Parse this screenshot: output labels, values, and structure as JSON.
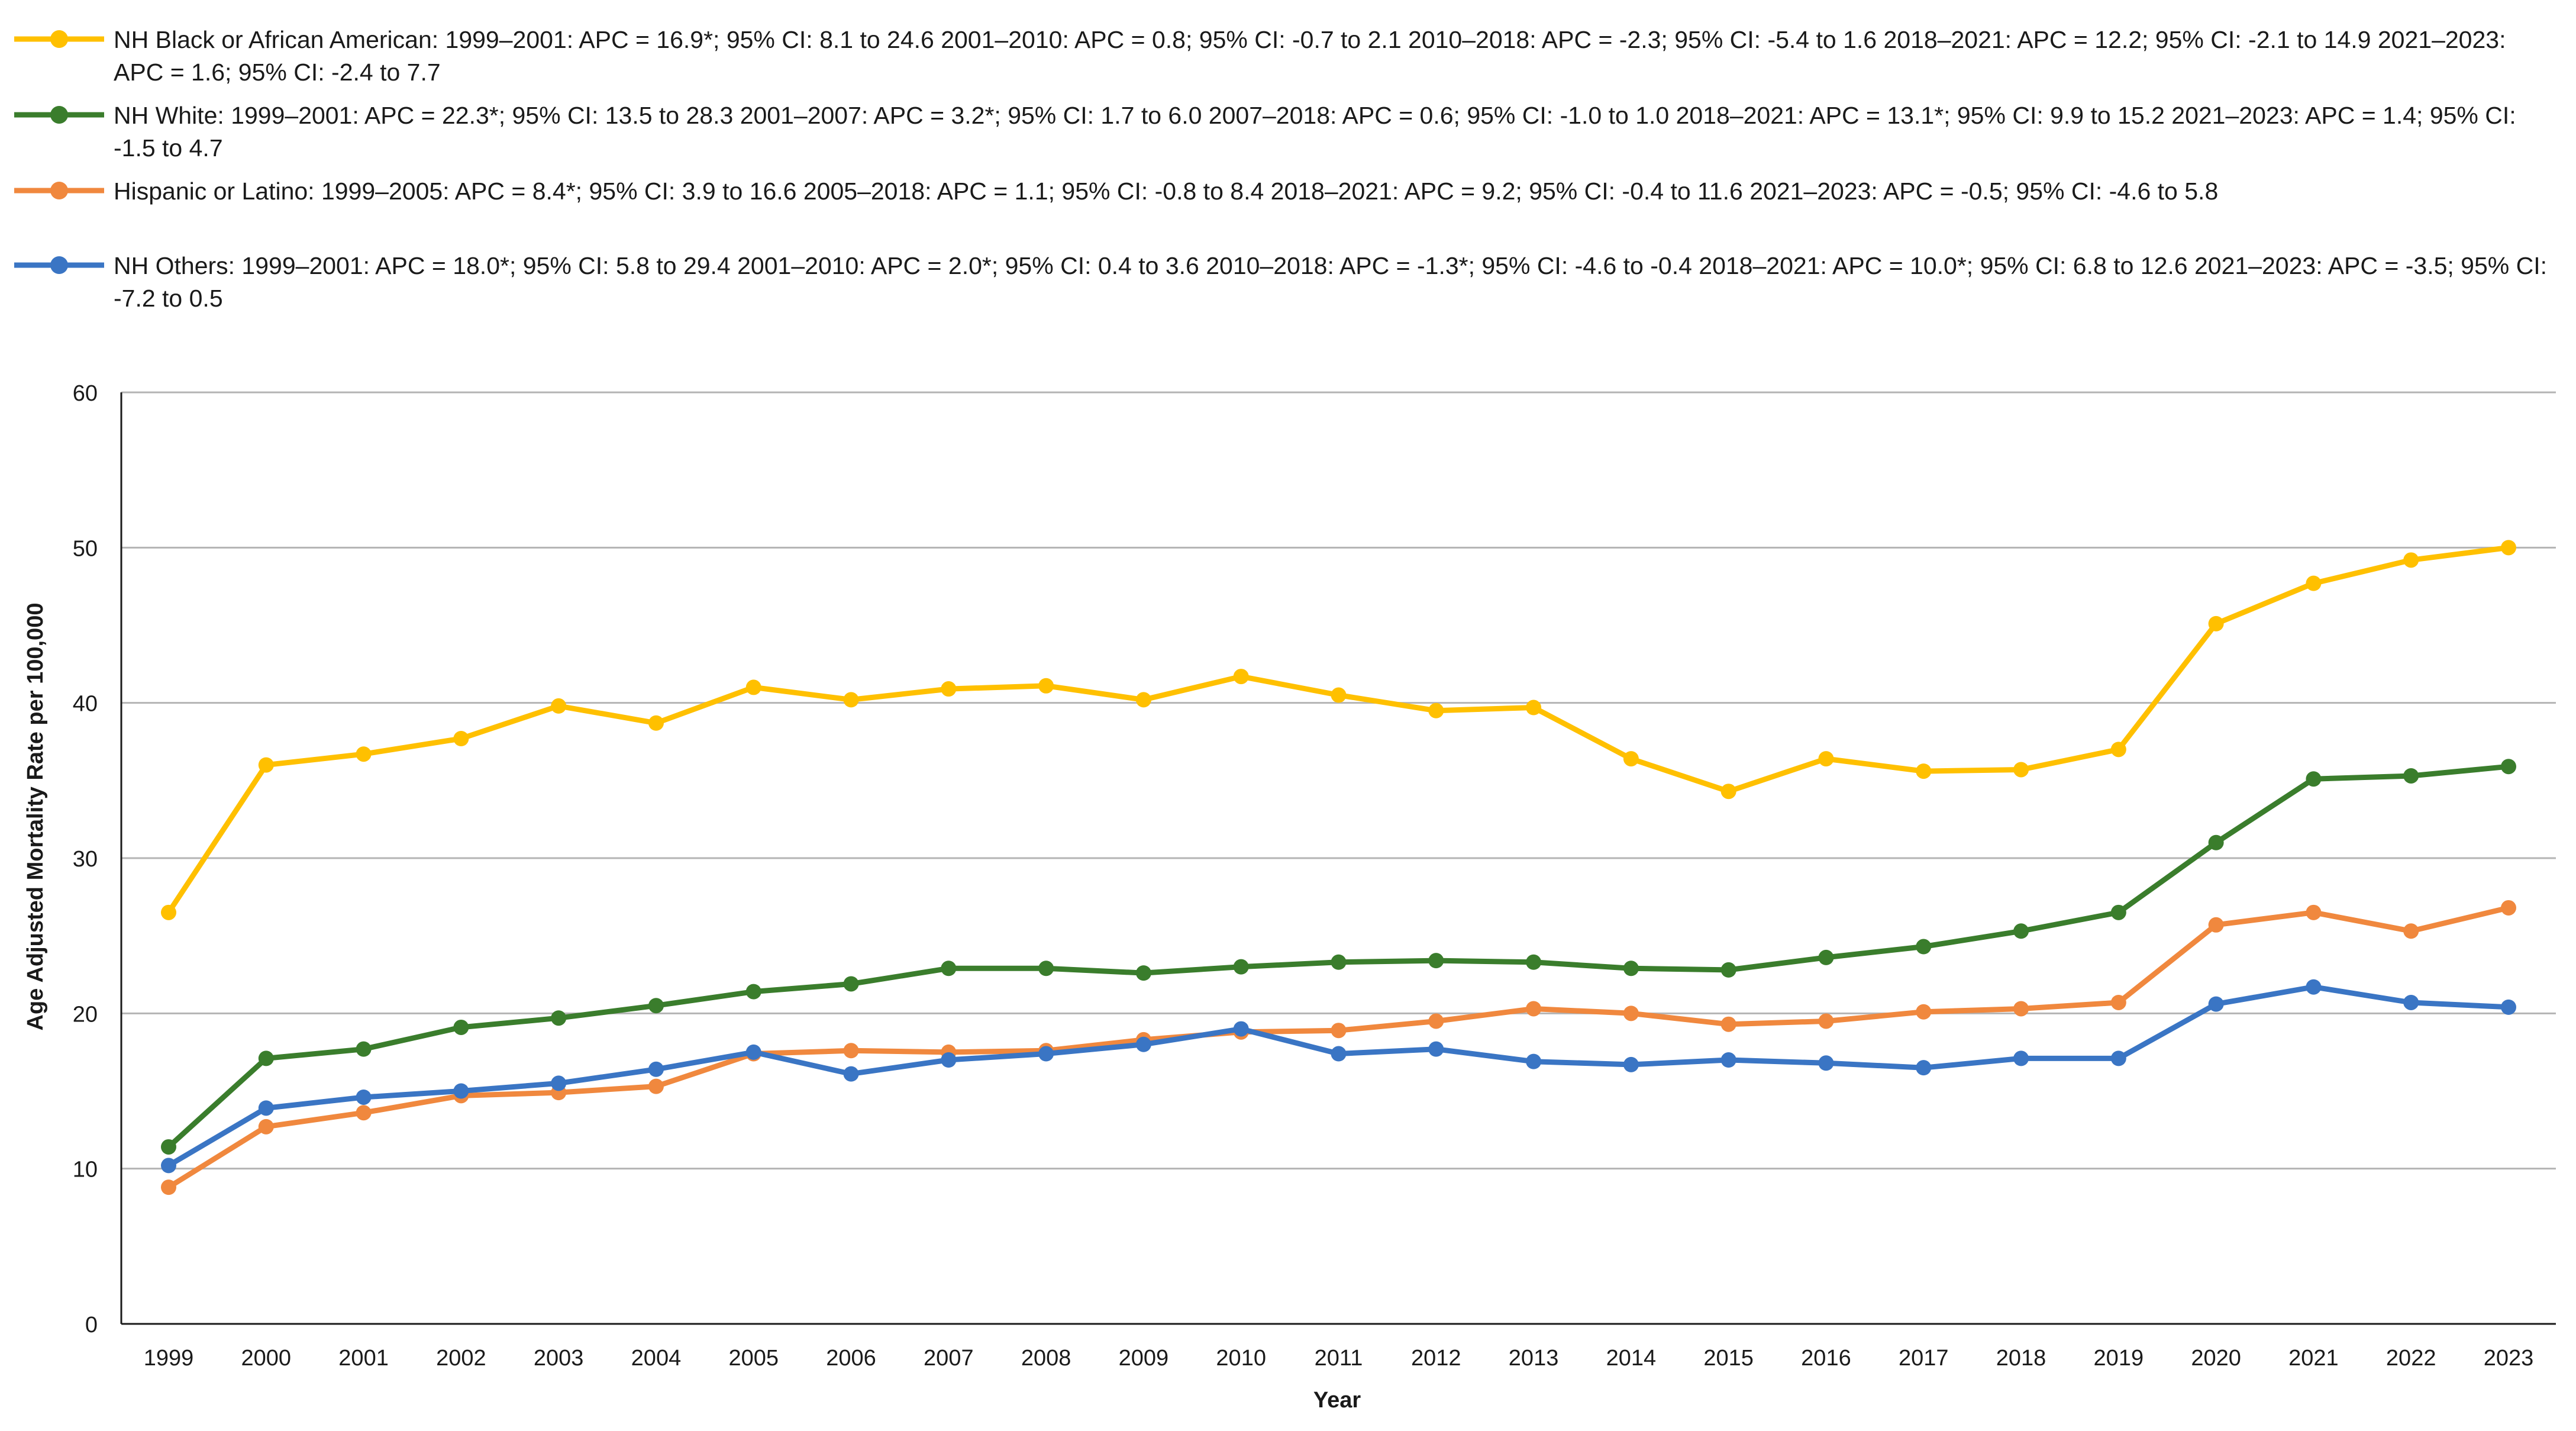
{
  "chart_data": {
    "type": "line",
    "title": "",
    "xlabel": "Year",
    "ylabel": "Age Adjusted Mortality Rate per 100,000",
    "ylim": [
      0,
      60
    ],
    "yticks": [
      0,
      10,
      20,
      30,
      40,
      50,
      60
    ],
    "grid": true,
    "legend_position": "top",
    "categories": [
      "1999",
      "2000",
      "2001",
      "2002",
      "2003",
      "2004",
      "2005",
      "2006",
      "2007",
      "2008",
      "2009",
      "2010",
      "2011",
      "2012",
      "2013",
      "2014",
      "2015",
      "2016",
      "2017",
      "2018",
      "2019",
      "2020",
      "2021",
      "2022",
      "2023"
    ],
    "series": [
      {
        "name": "NH Black or African American",
        "color": "#FFC000",
        "legend": "NH Black or African American: 1999–2001: APC = 16.9*; 95% CI: 8.1 to 24.6 2001–2010: APC = 0.8; 95% CI: -0.7 to 2.1 2010–2018: APC = -2.3; 95% CI: -5.4 to 1.6 2018–2021: APC = 12.2; 95% CI: -2.1 to 14.9 2021–2023: APC = 1.6; 95% CI: -2.4 to 7.7",
        "values": [
          26.5,
          36.0,
          36.7,
          37.7,
          39.8,
          38.7,
          41.0,
          40.2,
          40.9,
          41.1,
          40.2,
          41.7,
          40.5,
          39.5,
          39.7,
          36.4,
          34.3,
          36.4,
          35.6,
          35.7,
          37.0,
          45.1,
          47.7,
          49.2,
          50.0
        ]
      },
      {
        "name": "NH White",
        "color": "#3A7D2C",
        "legend": "NH White: 1999–2001: APC = 22.3*; 95% CI: 13.5 to 28.3 2001–2007: APC = 3.2*; 95% CI: 1.7 to 6.0 2007–2018: APC = 0.6; 95% CI: -1.0 to 1.0 2018–2021: APC = 13.1*; 95% CI: 9.9 to 15.2 2021–2023: APC = 1.4; 95% CI: -1.5 to 4.7",
        "values": [
          11.4,
          17.1,
          17.7,
          19.1,
          19.7,
          20.5,
          21.4,
          21.9,
          22.9,
          22.9,
          22.6,
          23.0,
          23.3,
          23.4,
          23.3,
          22.9,
          22.8,
          23.6,
          24.3,
          25.3,
          26.5,
          31.0,
          35.1,
          35.3,
          35.9
        ]
      },
      {
        "name": "Hispanic or Latino",
        "color": "#F0883E",
        "legend": "Hispanic or Latino: 1999–2005: APC = 8.4*; 95% CI: 3.9 to 16.6 2005–2018: APC = 1.1; 95% CI: -0.8 to 8.4 2018–2021: APC = 9.2; 95% CI: -0.4 to 11.6 2021–2023: APC = -0.5; 95% CI: -4.6 to 5.8",
        "values": [
          8.8,
          12.7,
          13.6,
          14.7,
          14.9,
          15.3,
          17.4,
          17.6,
          17.5,
          17.6,
          18.3,
          18.8,
          18.9,
          19.5,
          20.3,
          20.0,
          19.3,
          19.5,
          20.1,
          20.3,
          20.7,
          25.7,
          26.5,
          25.3,
          26.8
        ]
      },
      {
        "name": "NH Others",
        "color": "#3A75C4",
        "legend": "NH Others: 1999–2001: APC = 18.0*; 95% CI: 5.8 to 29.4 2001–2010: APC = 2.0*; 95% CI: 0.4 to 3.6 2010–2018: APC = -1.3*; 95% CI: -4.6 to -0.4 2018–2021: APC = 10.0*; 95% CI: 6.8 to 12.6 2021–2023: APC = -3.5; 95% CI: -7.2 to 0.5",
        "values": [
          10.2,
          13.9,
          14.6,
          15.0,
          15.5,
          16.4,
          17.5,
          16.1,
          17.0,
          17.4,
          18.0,
          19.0,
          17.4,
          17.7,
          16.9,
          16.7,
          17.0,
          16.8,
          16.5,
          17.1,
          17.1,
          20.6,
          21.7,
          20.7,
          20.4
        ]
      }
    ]
  }
}
